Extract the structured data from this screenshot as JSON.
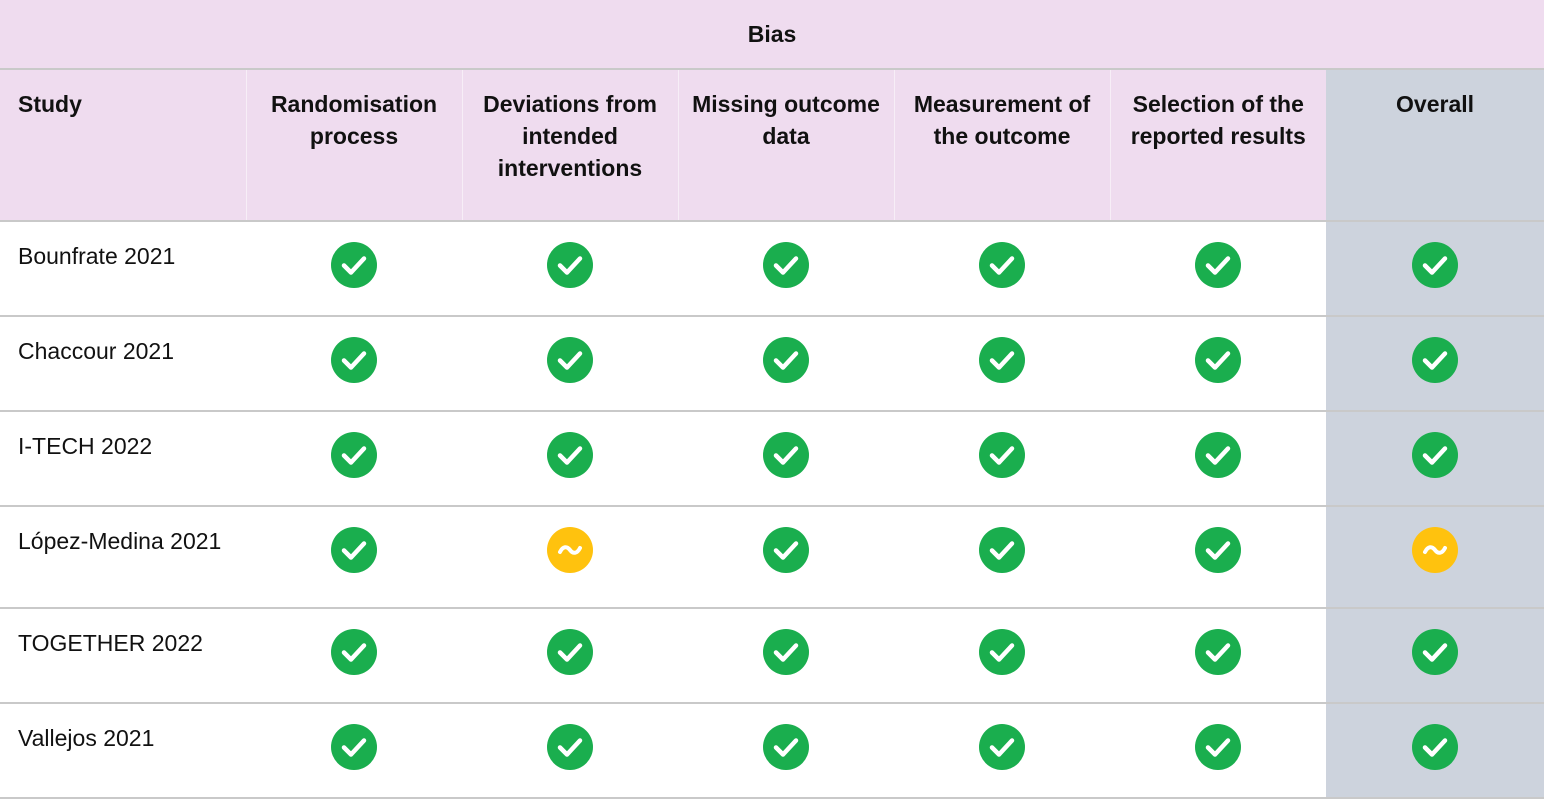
{
  "table": {
    "group_header": "Bias",
    "columns": [
      "Study",
      "Randomisation process",
      "Deviations from intended interventions",
      "Missing outcome data",
      "Measurement of the outcome",
      "Selection of the reported results",
      "Overall"
    ],
    "rows": [
      {
        "study": "Bounfrate 2021",
        "ratings": [
          "low",
          "low",
          "low",
          "low",
          "low",
          "low"
        ]
      },
      {
        "study": "Chaccour 2021",
        "ratings": [
          "low",
          "low",
          "low",
          "low",
          "low",
          "low"
        ]
      },
      {
        "study": "I-TECH 2022",
        "ratings": [
          "low",
          "low",
          "low",
          "low",
          "low",
          "low"
        ]
      },
      {
        "study": "López-Medina 2021",
        "ratings": [
          "low",
          "some",
          "low",
          "low",
          "low",
          "some"
        ]
      },
      {
        "study": "TOGETHER 2022",
        "ratings": [
          "low",
          "low",
          "low",
          "low",
          "low",
          "low"
        ]
      },
      {
        "study": "Vallejos 2021",
        "ratings": [
          "low",
          "low",
          "low",
          "low",
          "low",
          "low"
        ]
      }
    ]
  },
  "icons": {
    "low": "check-circle-icon",
    "some": "tilde-circle-icon"
  },
  "colors": {
    "low": "#1aae4e",
    "some": "#ffc20e",
    "header_bg": "#efdcef",
    "overall_bg": "#cdd3dd"
  }
}
